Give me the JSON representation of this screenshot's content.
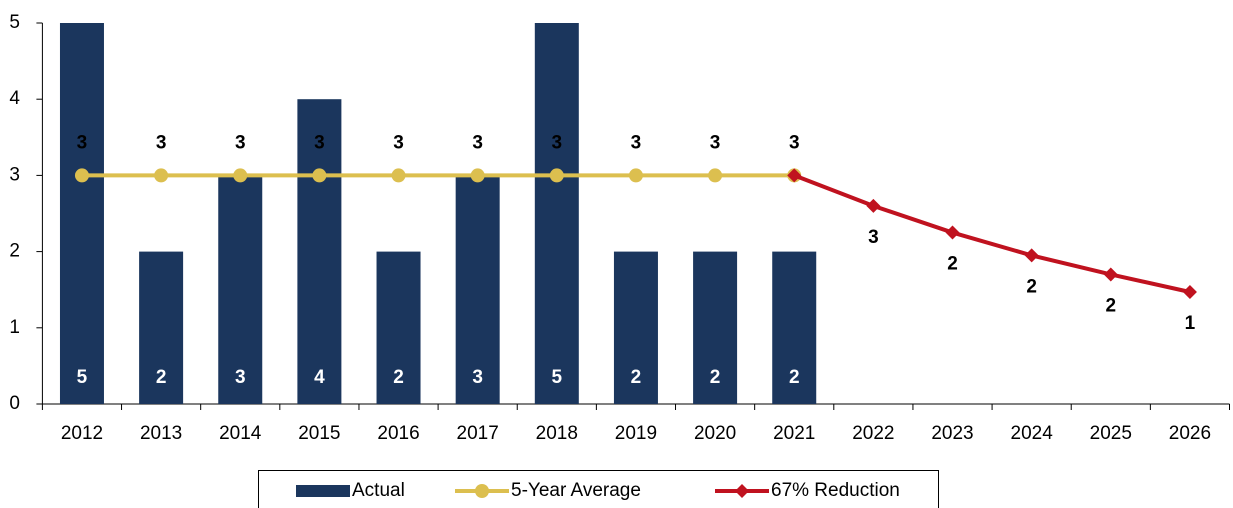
{
  "chart_data": {
    "type": "bar",
    "categories": [
      "2012",
      "2013",
      "2014",
      "2015",
      "2016",
      "2017",
      "2018",
      "2019",
      "2020",
      "2021",
      "2022",
      "2023",
      "2024",
      "2025",
      "2026"
    ],
    "series": [
      {
        "name": "Actual",
        "type": "bar",
        "color": "#1b365d",
        "values": [
          5,
          2,
          3,
          4,
          2,
          3,
          5,
          2,
          2,
          2,
          null,
          null,
          null,
          null,
          null
        ]
      },
      {
        "name": "5-Year Average",
        "type": "line",
        "marker": "circle",
        "color": "#dcbf4f",
        "values": [
          3,
          3,
          3,
          3,
          3,
          3,
          3,
          3,
          3,
          3,
          null,
          null,
          null,
          null,
          null
        ]
      },
      {
        "name": "67% Reduction",
        "type": "line",
        "marker": "diamond",
        "color": "#c0121f",
        "values": [
          null,
          null,
          null,
          null,
          null,
          null,
          null,
          null,
          null,
          3,
          2.6,
          2.25,
          1.95,
          1.7,
          1.47
        ],
        "value_labels": [
          null,
          null,
          null,
          null,
          null,
          null,
          null,
          null,
          null,
          null,
          "3",
          "2",
          "2",
          "2",
          "1"
        ]
      }
    ],
    "ylim": [
      0,
      5
    ],
    "yticks": [
      0,
      1,
      2,
      3,
      4,
      5
    ],
    "grid": false,
    "legend": "bottom"
  }
}
